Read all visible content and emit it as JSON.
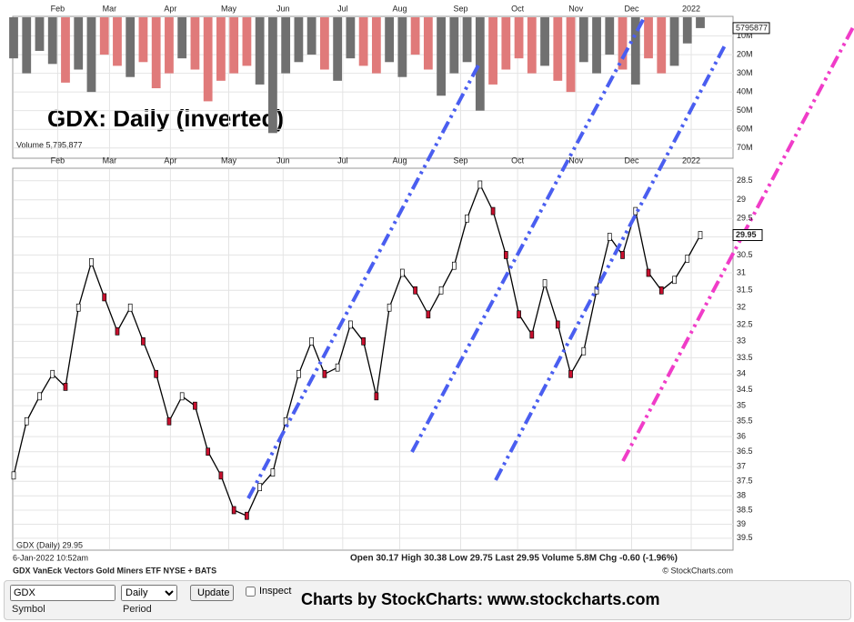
{
  "title": "GDX:  Daily (inverted)",
  "chart_data": [
    {
      "type": "line",
      "name": "GDX (Daily)",
      "legend": "GDX (Daily) 29.95",
      "x": [
        0,
        1,
        2,
        3,
        4,
        5,
        6,
        7,
        8,
        9,
        10,
        11,
        12,
        13,
        14,
        15,
        16,
        17,
        18,
        19,
        20,
        21,
        22,
        23,
        24,
        25,
        26,
        27,
        28,
        29,
        30,
        31,
        32,
        33,
        34,
        35,
        36,
        37,
        38,
        39,
        40,
        41,
        42,
        43,
        44,
        45,
        46,
        47,
        48,
        49,
        50,
        51,
        52,
        53
      ],
      "values": [
        37.3,
        35.5,
        34.7,
        34.0,
        34.4,
        32.0,
        30.7,
        31.7,
        32.7,
        32.0,
        33.0,
        34.0,
        35.5,
        34.7,
        35.0,
        36.5,
        37.3,
        38.5,
        38.7,
        37.7,
        37.2,
        35.5,
        34.0,
        33.0,
        34.0,
        33.8,
        32.5,
        33.0,
        34.7,
        32.0,
        31.0,
        31.5,
        32.2,
        31.5,
        30.8,
        29.5,
        28.6,
        29.3,
        30.5,
        32.2,
        32.8,
        31.3,
        32.5,
        34.0,
        33.3,
        31.5,
        30.0,
        30.5,
        29.3,
        31.0,
        31.5,
        31.2,
        30.6,
        29.95
      ],
      "color": "#000000",
      "xlim": [
        0,
        53
      ],
      "xticks": [
        {
          "value": 3.4,
          "label": "Feb"
        },
        {
          "value": 7.4,
          "label": "Mar"
        },
        {
          "value": 12.1,
          "label": "Apr"
        },
        {
          "value": 16.6,
          "label": "May"
        },
        {
          "value": 20.8,
          "label": "Jun"
        },
        {
          "value": 25.4,
          "label": "Jul"
        },
        {
          "value": 29.8,
          "label": "Aug"
        },
        {
          "value": 34.5,
          "label": "Sep"
        },
        {
          "value": 38.9,
          "label": "Oct"
        },
        {
          "value": 43.4,
          "label": "Nov"
        },
        {
          "value": 47.7,
          "label": "Dec"
        },
        {
          "value": 52.3,
          "label": "2022"
        }
      ],
      "ylim": [
        28.2,
        39.9
      ],
      "log": true,
      "inverted": true,
      "yticks": [
        28.5,
        29.0,
        29.5,
        30.0,
        30.5,
        31.0,
        31.5,
        32.0,
        32.5,
        33.0,
        33.5,
        34.0,
        34.5,
        35.0,
        35.5,
        36.0,
        36.5,
        37.0,
        37.5,
        38.0,
        38.5,
        39.0,
        39.5
      ],
      "grid": true,
      "last": 29.95
    },
    {
      "type": "bar",
      "legend": "Volume 5,795,877",
      "values": [
        22000000,
        30000000,
        18000000,
        25000000,
        35000000,
        28000000,
        40000000,
        20000000,
        26000000,
        32000000,
        24000000,
        38000000,
        30000000,
        22000000,
        28000000,
        45000000,
        34000000,
        30000000,
        26000000,
        36000000,
        62000000,
        30000000,
        24000000,
        20000000,
        28000000,
        34000000,
        22000000,
        26000000,
        30000000,
        24000000,
        32000000,
        20000000,
        28000000,
        42000000,
        30000000,
        24000000,
        50000000,
        36000000,
        28000000,
        22000000,
        30000000,
        26000000,
        34000000,
        40000000,
        24000000,
        30000000,
        20000000,
        28000000,
        36000000,
        22000000,
        30000000,
        26000000,
        14000000,
        5795877
      ],
      "up_color": "#e07a7a",
      "down_color": "#707070",
      "ylim": [
        0,
        75000000
      ],
      "inverted": true,
      "yticks": [
        {
          "value": 10000000,
          "label": "10M"
        },
        {
          "value": 20000000,
          "label": "20M"
        },
        {
          "value": 30000000,
          "label": "30M"
        },
        {
          "value": 40000000,
          "label": "40M"
        },
        {
          "value": 50000000,
          "label": "50M"
        },
        {
          "value": 60000000,
          "label": "60M"
        },
        {
          "value": 70000000,
          "label": "70M"
        }
      ],
      "tag": "5795877"
    }
  ],
  "info": {
    "date": "6-Jan-2022 10:52am",
    "symbol_line": "GDX VanEck Vectors Gold Miners ETF NYSE + BATS",
    "quote": "Open 30.17  High 30.38  Low 29.75  Last 29.95  Volume 5.8M  Chg -0.60 (-1.96%)",
    "copyright": "© StockCharts.com"
  },
  "form": {
    "symbol": "GDX",
    "symbol_label": "Symbol",
    "period": "Daily",
    "period_label": "Period",
    "update": "Update",
    "inspect": "Inspect",
    "brand": "Charts by StockCharts:  www.stockcharts.com"
  }
}
